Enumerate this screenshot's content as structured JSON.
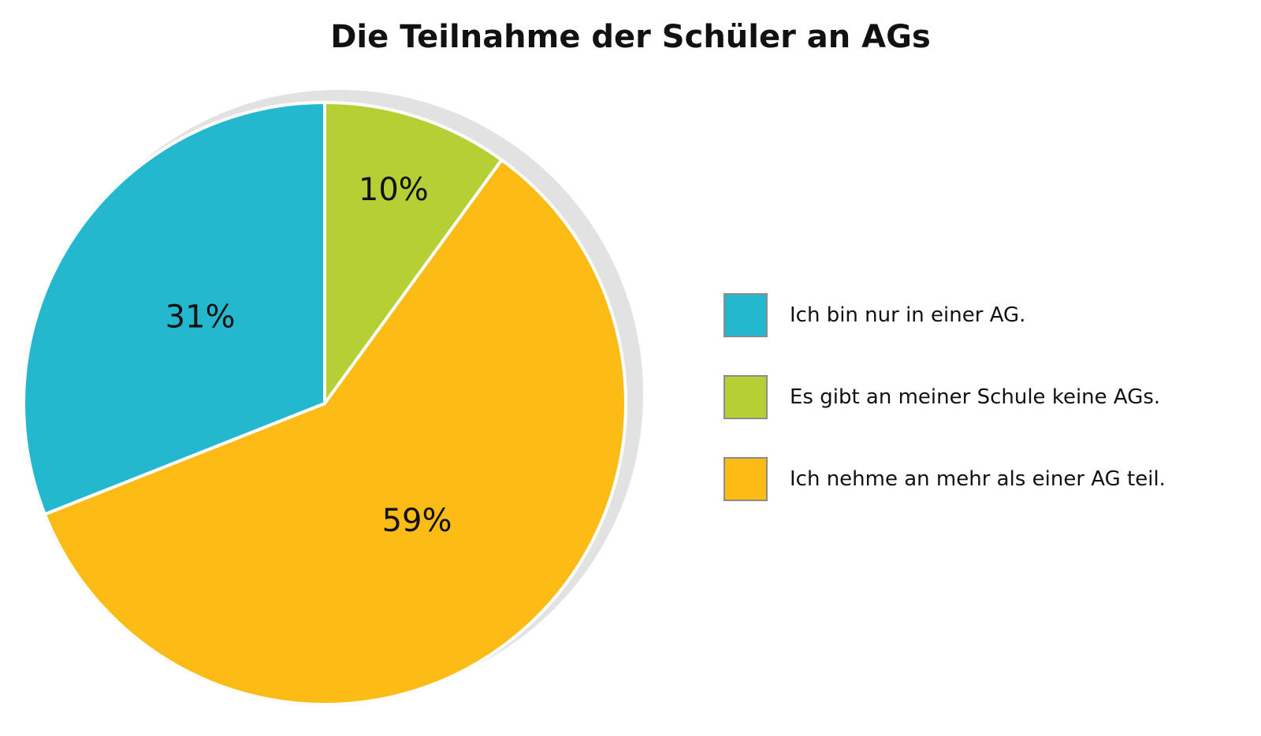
{
  "chart_data": {
    "type": "pie",
    "title": "Die Teilnahme der Schüler an AGs",
    "slices": [
      {
        "name": "Es gibt an meiner Schule keine AGs.",
        "value": 10,
        "label": "10%",
        "color": "#b5cf35"
      },
      {
        "name": "Ich nehme an mehr als einer AG teil.",
        "value": 59,
        "label": "59%",
        "color": "#fdbb16"
      },
      {
        "name": "Ich bin nur in einer AG.",
        "value": 31,
        "label": "31%",
        "color": "#24b8cf"
      }
    ],
    "legend": {
      "placement": "right",
      "entries": [
        {
          "label": "Ich bin nur in einer AG.",
          "color": "#24b8cf"
        },
        {
          "label": "Es gibt an meiner Schule keine AGs.",
          "color": "#b5cf35"
        },
        {
          "label": "Ich nehme an mehr als einer AG teil.",
          "color": "#fdbb16"
        }
      ]
    },
    "start_angle": "12 o'clock",
    "direction": "clockwise",
    "shadow_color": "#e2e2e2",
    "border_color": "#ffffff"
  }
}
